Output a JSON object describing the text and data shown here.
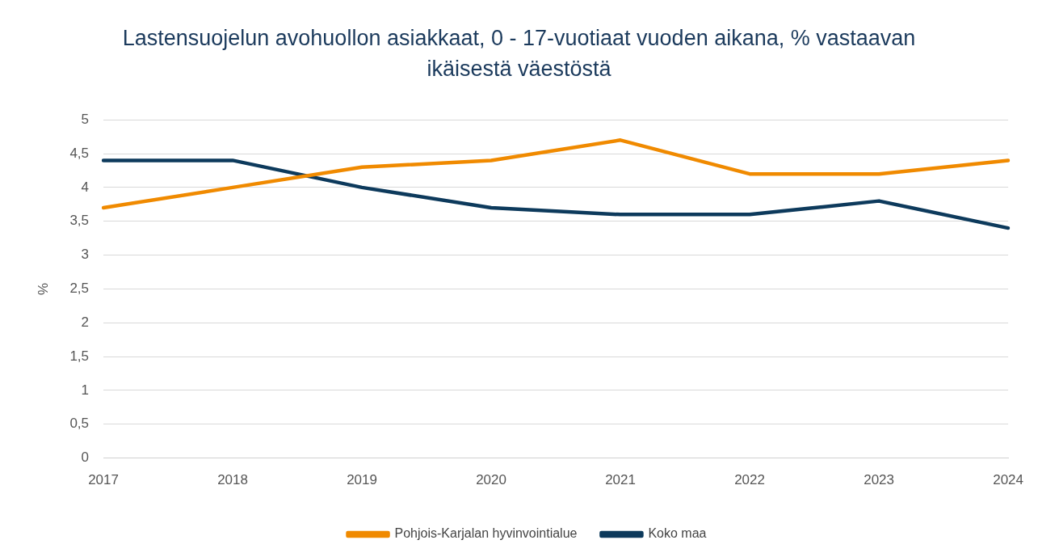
{
  "chart_data": {
    "type": "line",
    "title": "Lastensuojelun avohuollon asiakkaat, 0 - 17-vuotiaat vuoden aikana, % vastaavan ikäisestä väestöstä",
    "ylabel": "%",
    "categories": [
      "2017",
      "2018",
      "2019",
      "2020",
      "2021",
      "2022",
      "2023",
      "2024"
    ],
    "series": [
      {
        "name": "Pohjois-Karjalan hyvinvointialue",
        "color": "#f08a00",
        "values": [
          3.7,
          4.0,
          4.3,
          4.4,
          4.7,
          4.2,
          4.2,
          4.4
        ]
      },
      {
        "name": "Koko maa",
        "color": "#0d3a5c",
        "values": [
          4.4,
          4.4,
          4.0,
          3.7,
          3.6,
          3.6,
          3.8,
          3.4
        ]
      }
    ],
    "ylim": [
      0,
      5
    ],
    "yticks": [
      0,
      {
        "value": 0.5,
        "label": "0,5"
      },
      1,
      {
        "value": 1.5,
        "label": "1,5"
      },
      2,
      {
        "value": 2.5,
        "label": "2,5"
      },
      3,
      {
        "value": 3.5,
        "label": "3,5"
      },
      4,
      {
        "value": 4.5,
        "label": "4,5"
      },
      5
    ],
    "grid": "y",
    "legend": "bottom",
    "marker": "none",
    "line_style": "solid"
  }
}
